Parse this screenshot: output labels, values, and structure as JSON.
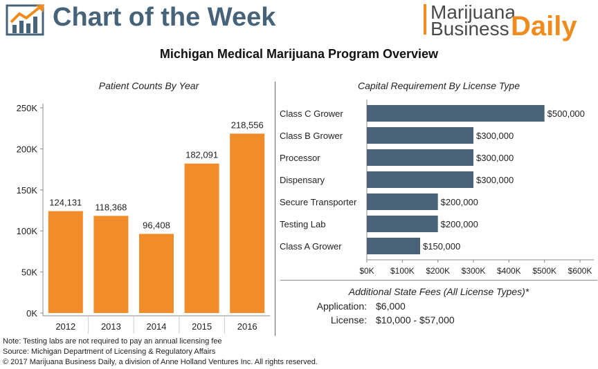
{
  "header": {
    "brand_title": "Chart of the Week",
    "logo_line1": "Marijuana",
    "logo_line2": "Business",
    "logo_daily": "Daily",
    "main_title": "Michigan Medical Marijuana Program Overview"
  },
  "colors": {
    "bar_orange": "#f08c2a",
    "bar_slate": "#4a6278",
    "brand_slate": "#46637a",
    "brand_orange": "#f08c1e"
  },
  "chart_data": [
    {
      "type": "bar",
      "title": "Patient Counts By Year",
      "categories": [
        "2012",
        "2013",
        "2014",
        "2015",
        "2016"
      ],
      "values": [
        124131,
        118368,
        96408,
        182091,
        218556
      ],
      "value_labels": [
        "124,131",
        "118,368",
        "96,408",
        "182,091",
        "218,556"
      ],
      "ylim": [
        0,
        250000
      ],
      "y_ticks": [
        0,
        50000,
        100000,
        150000,
        200000,
        250000
      ],
      "y_tick_labels": [
        "0K",
        "50K",
        "100K",
        "150K",
        "200K",
        "250K"
      ],
      "grid": false,
      "color": "#f08c2a"
    },
    {
      "type": "bar",
      "orientation": "horizontal",
      "title": "Capital Requirement By License Type",
      "categories": [
        "Class C Grower",
        "Class B Grower",
        "Processor",
        "Dispensary",
        "Secure Transporter",
        "Testing Lab",
        "Class A Grower"
      ],
      "values": [
        500000,
        300000,
        300000,
        300000,
        200000,
        200000,
        150000
      ],
      "value_labels": [
        "$500,000",
        "$300,000",
        "$300,000",
        "$300,000",
        "$200,000",
        "$200,000",
        "$150,000"
      ],
      "xlim": [
        0,
        600000
      ],
      "x_ticks": [
        0,
        100000,
        200000,
        300000,
        400000,
        500000,
        600000
      ],
      "x_tick_labels": [
        "$0K",
        "$100K",
        "$200K",
        "$300K",
        "$400K",
        "$500K",
        "$600K"
      ],
      "grid": false,
      "color": "#4a6278"
    }
  ],
  "fees": {
    "title": "Additional State Fees (All License Types)*",
    "application_label": "Application:",
    "application_value": "$6,000",
    "license_label": "License:",
    "license_value": "$10,000 - $57,000"
  },
  "notes": {
    "note": "Note: Testing labs are not required to pay an annual licensing fee",
    "source": "Source: Michigan Department of Licensing & Regulatory Affairs",
    "copyright": "© 2017 Marijuana Business Daily, a division of Anne Holland Ventures Inc. All rights reserved."
  }
}
